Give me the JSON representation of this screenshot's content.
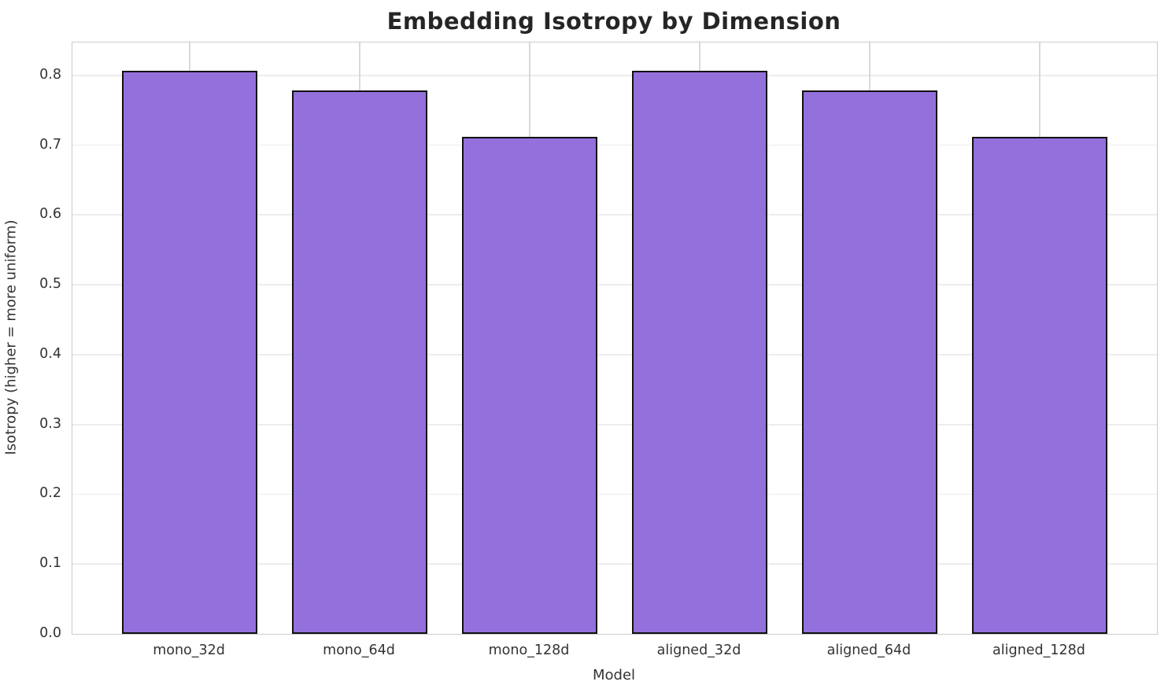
{
  "chart_data": {
    "type": "bar",
    "title": "Embedding Isotropy by Dimension",
    "xlabel": "Model",
    "ylabel": "Isotropy (higher = more uniform)",
    "categories": [
      "mono_32d",
      "mono_64d",
      "mono_128d",
      "aligned_32d",
      "aligned_64d",
      "aligned_128d"
    ],
    "values": [
      0.807,
      0.778,
      0.712,
      0.807,
      0.778,
      0.712
    ],
    "yticks": [
      0.0,
      0.1,
      0.2,
      0.3,
      0.4,
      0.5,
      0.6,
      0.7,
      0.8
    ],
    "ylim": [
      0,
      0.847
    ],
    "xlim": [
      -0.69,
      5.69
    ],
    "bar_width_units": 0.8,
    "grid": true,
    "legend": "none",
    "colors": {
      "bar_fill": "#9370DB",
      "bar_edge": "#111111",
      "grid_horizontal": "#ececec",
      "grid_vertical": "#d9d9d9",
      "spine": "#cccccc",
      "tick_text": "#333333",
      "title_text": "#252525"
    }
  }
}
